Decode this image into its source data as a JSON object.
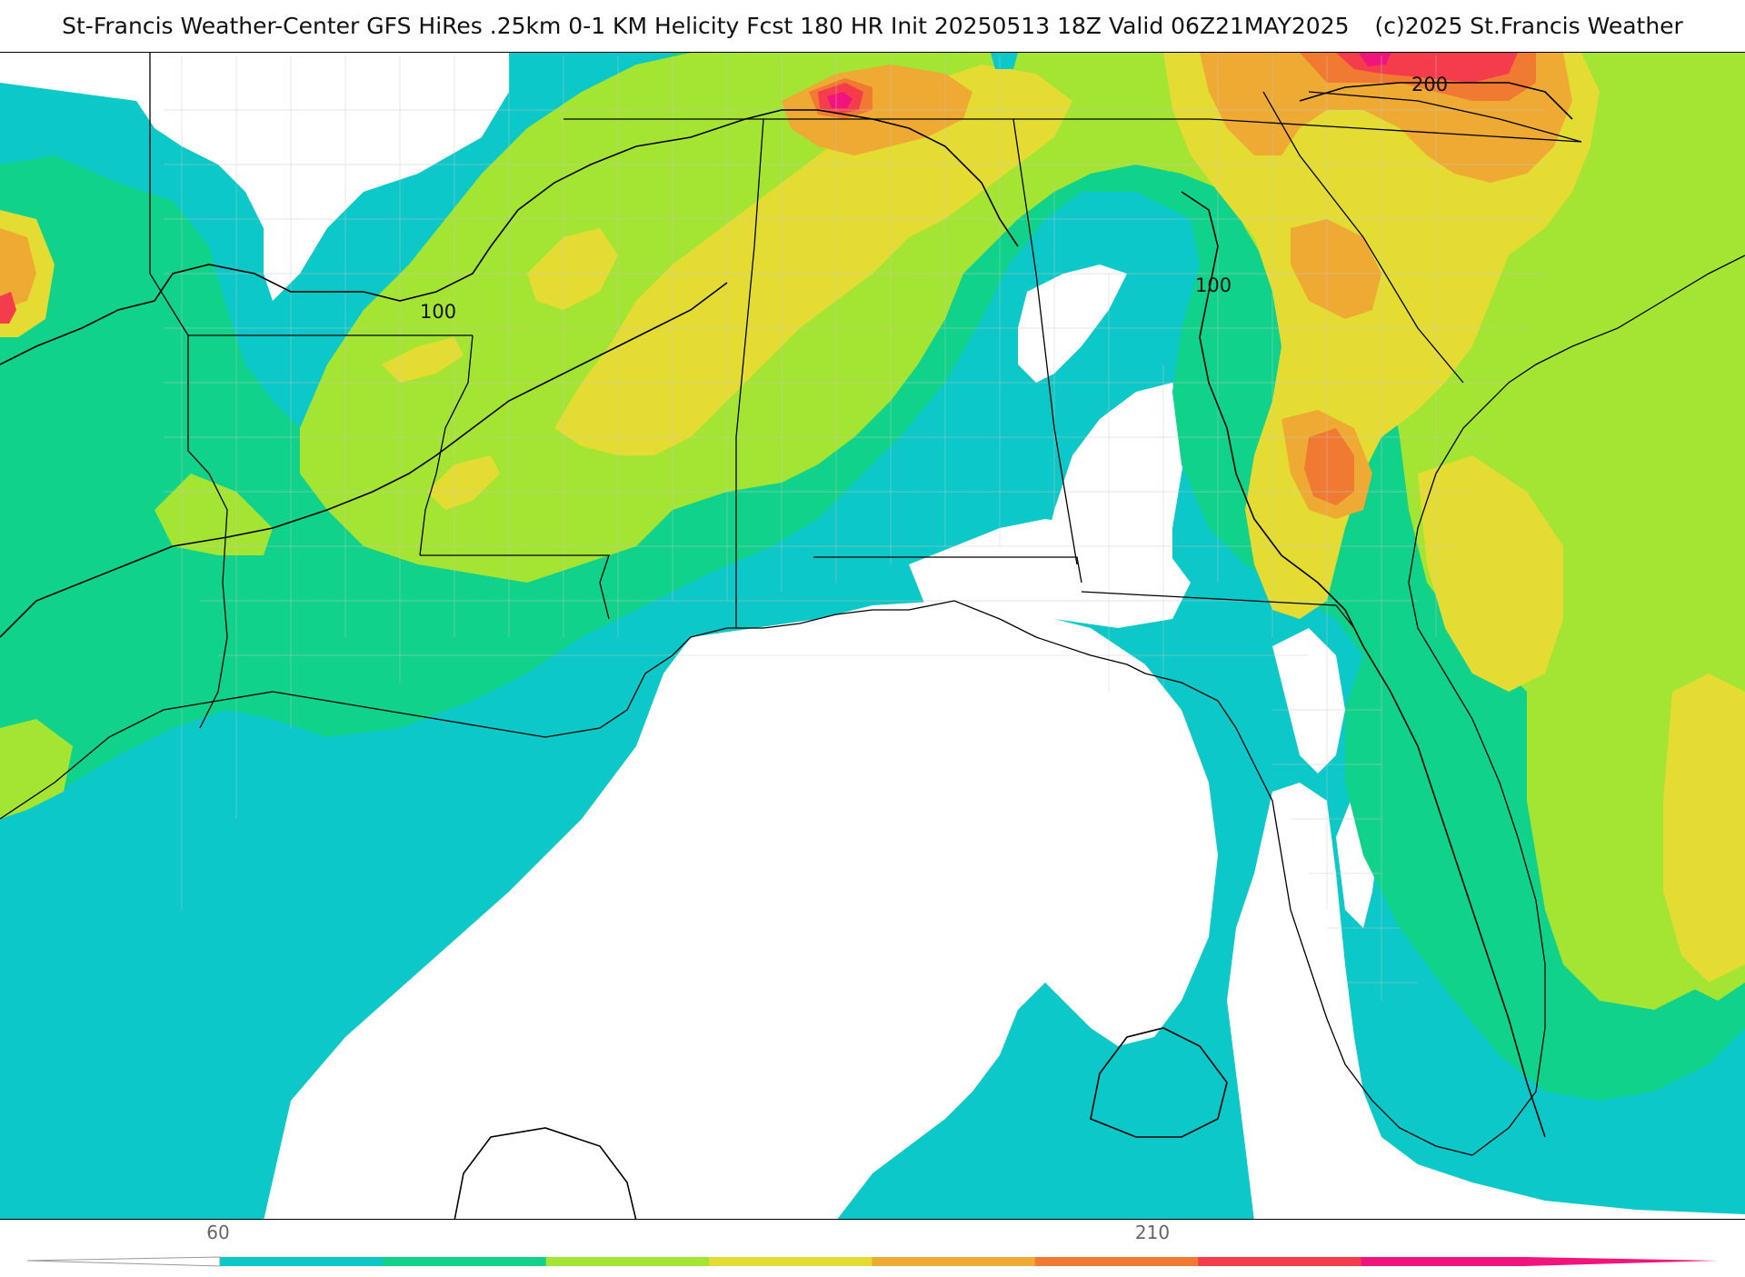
{
  "header": {
    "title_main": "St-Francis Weather-Center GFS HiRes .25km 0-1 KM Helicity Fcst 180 HR Init 20250513 18Z  Valid 06Z21MAY2025",
    "copyright": "(c)2025 St.Francis Weather"
  },
  "map": {
    "field": "0-1 KM Helicity",
    "contour_labels": [
      "100",
      "100",
      "200"
    ],
    "colors": {
      "none": "#ffffff",
      "c60": "#0cc8c8",
      "c90": "#10d28a",
      "c120": "#a4e432",
      "c150": "#e4dc32",
      "c180": "#eeaa32",
      "c210": "#f07a32",
      "c240": "#f43c4c",
      "c270": "#f0147c",
      "state_line": "#000000",
      "county_line": "#c8c8c8"
    }
  },
  "colorbar": {
    "tick_labels": [
      "60",
      "210"
    ],
    "segments": [
      "#0cc8c8",
      "#10d28a",
      "#a4e432",
      "#e4dc32",
      "#eeaa32",
      "#f07a32",
      "#f43c4c",
      "#f0147c"
    ]
  }
}
